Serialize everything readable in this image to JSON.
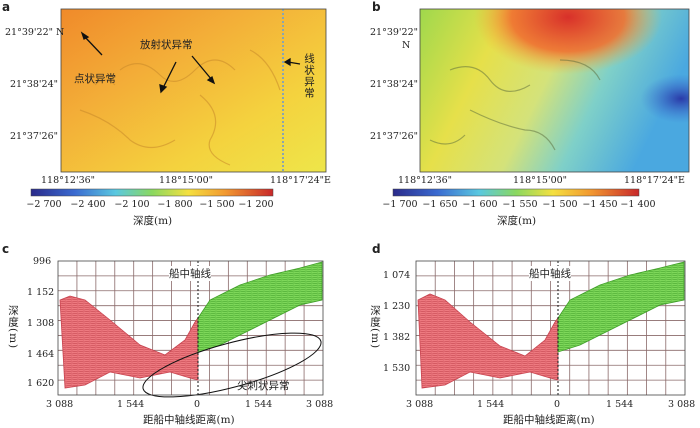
{
  "panel_a": {
    "letter": "a",
    "lat_ticks": [
      "21°39'22\" N",
      "21°38'24\"",
      "21°37'26\""
    ],
    "lon_ticks": [
      "118°12'36\"",
      "118°15'00\"",
      "118°17'24\"E"
    ],
    "ann_point": "点状异常",
    "ann_radial": "放射状异常",
    "ann_linear": "线状异常",
    "colorbar": {
      "labels": [
        "−2 700",
        "−2 400",
        "−2 100",
        "−1 800",
        "−1 500",
        "−1 200"
      ],
      "title": "深度(m)"
    }
  },
  "panel_b": {
    "letter": "b",
    "lat_ticks": [
      "21°39'22\"",
      "N",
      "21°38'24\"",
      "21°37'26\""
    ],
    "lon_ticks": [
      "118°12'36\"",
      "118°15'00\"",
      "118°17'24\"E"
    ],
    "colorbar": {
      "labels": [
        "−1 700",
        "−1 650",
        "−1 600",
        "−1 550",
        "−1 500",
        "−1 450",
        "−1 400"
      ],
      "title": "深度(m)"
    }
  },
  "panel_c": {
    "letter": "c",
    "y_ticks": [
      "996",
      "1 152",
      "1 308",
      "1 464",
      "1 620"
    ],
    "x_ticks": [
      "3 088",
      "1 544",
      "0",
      "1 544",
      "3 088"
    ],
    "ylabel": "深度(m)",
    "xlabel": "距船中轴线距离(m)",
    "center_label": "船中轴线",
    "spike_label": "尖刺状异常"
  },
  "panel_d": {
    "letter": "d",
    "y_ticks": [
      "1 074",
      "1 230",
      "1 382",
      "1 530"
    ],
    "x_ticks": [
      "3 088",
      "1 544",
      "0",
      "1 544",
      "3 088"
    ],
    "ylabel": "深度(m)",
    "xlabel": "距船中轴线距离(m)",
    "center_label": "船中轴线"
  },
  "colors": {
    "port_swath": "#e8656b",
    "starboard_swath": "#5cc83a",
    "grid": "#8a6a6a",
    "map_a_main": "#f2b53a",
    "map_b_high": "#d83a2a",
    "map_b_low": "#3a64c8"
  }
}
